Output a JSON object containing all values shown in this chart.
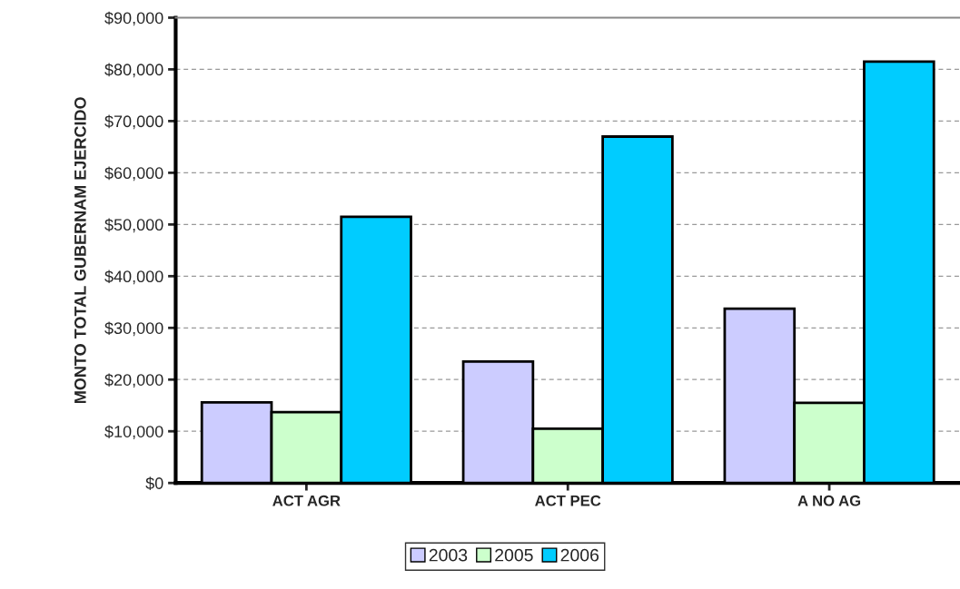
{
  "chart_data": {
    "type": "bar",
    "ylabel": "MONTO TOTAL GUBERNAM EJERCIDO",
    "categories": [
      "ACT AGR",
      "ACT PEC",
      "A NO AG"
    ],
    "series": [
      {
        "name": "2003",
        "color": "#ccccff",
        "values": [
          15600,
          23500,
          33700
        ]
      },
      {
        "name": "2005",
        "color": "#ccffcc",
        "values": [
          13700,
          10500,
          15500
        ]
      },
      {
        "name": "2006",
        "color": "#00ccff",
        "values": [
          51500,
          67000,
          81500
        ]
      }
    ],
    "ylim": [
      0,
      90000
    ],
    "yticks": [
      {
        "value": 0,
        "label": "$0"
      },
      {
        "value": 10000,
        "label": "$10,000"
      },
      {
        "value": 20000,
        "label": "$20,000"
      },
      {
        "value": 30000,
        "label": "$30,000"
      },
      {
        "value": 40000,
        "label": "$40,000"
      },
      {
        "value": 50000,
        "label": "$50,000"
      },
      {
        "value": 60000,
        "label": "$60,000"
      },
      {
        "value": 70000,
        "label": "$70,000"
      },
      {
        "value": 80000,
        "label": "$80,000"
      },
      {
        "value": 90000,
        "label": "$90,000"
      }
    ],
    "grid": "y",
    "legend": "bottom"
  }
}
